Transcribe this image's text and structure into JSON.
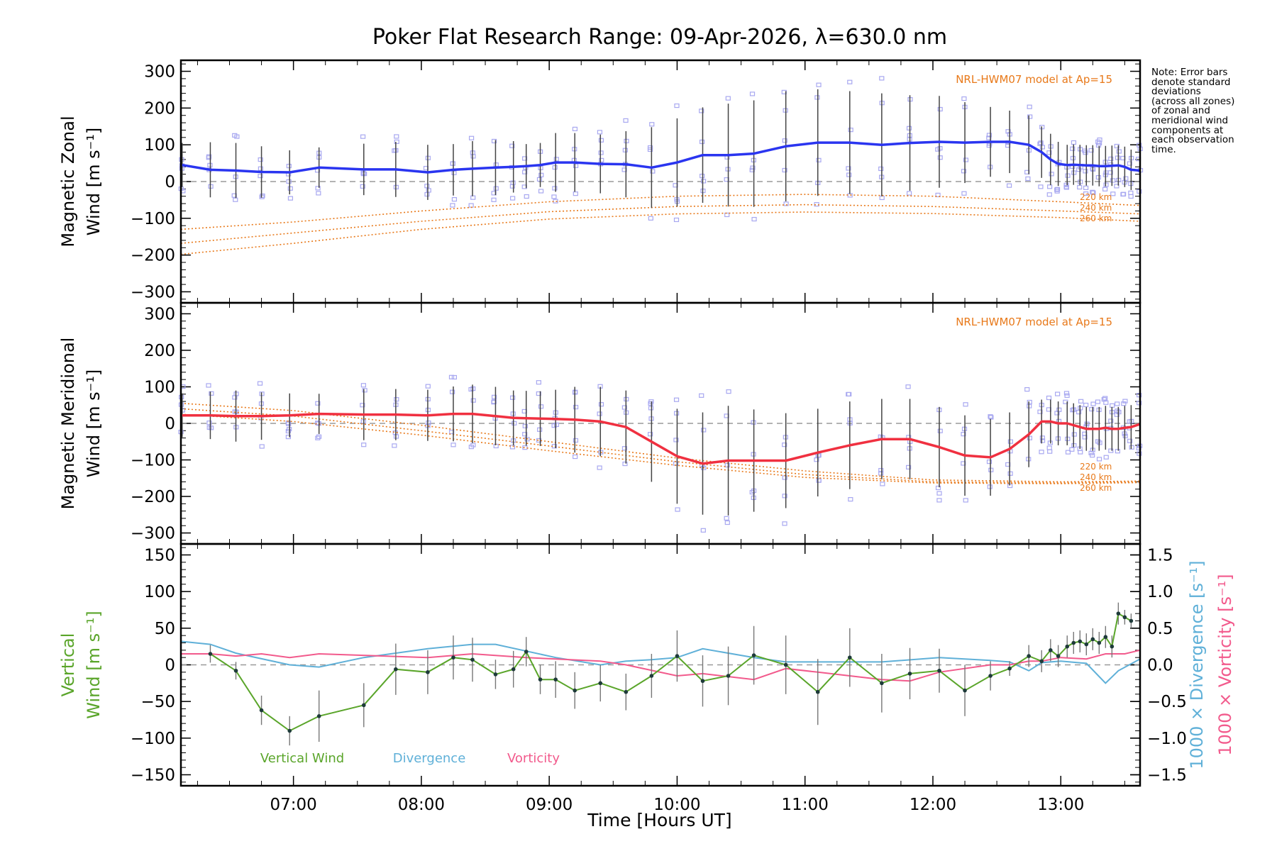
{
  "title": "Poker Flat Research Range: 09-Apr-2026, λ=630.0 nm",
  "note_lines": [
    "Note: Error bars",
    "denote standard",
    "deviations",
    "(across all zones)",
    "of zonal and",
    "meridional wind",
    "components at",
    "each observation",
    "time."
  ],
  "xlabel": "Time [Hours UT]",
  "colors": {
    "zonal_line": "#2a35f0",
    "meridional_line": "#f03040",
    "model": "#e8791a",
    "vertical": "#5aa52a",
    "divergence": "#5fb0d8",
    "vorticity": "#f25a8c",
    "zone_points": "#a8a8f0",
    "error_bar": "#444444",
    "zero_line": "#9a9a9a"
  },
  "chart_data": [
    {
      "type": "line",
      "panel": "zonal",
      "ylabel": [
        "Magnetic Zonal",
        "Wind [m s⁻¹]"
      ],
      "ylim": [
        -330,
        330
      ],
      "yticks": [
        -300,
        -200,
        -100,
        0,
        100,
        200,
        300
      ],
      "xlim_hours": [
        6.12,
        13.62
      ],
      "xticks": [
        "07:00",
        "08:00",
        "09:00",
        "10:00",
        "11:00",
        "12:00",
        "13:00"
      ],
      "model_label": "NRL-HWM07 model at Ap=15",
      "model_alt_labels": [
        "220 km",
        "240 km",
        "260 km"
      ],
      "series": [
        {
          "name": "Magnetic Zonal Wind",
          "x": [
            6.13,
            6.35,
            6.55,
            6.75,
            6.97,
            7.2,
            7.55,
            7.8,
            8.05,
            8.25,
            8.4,
            8.58,
            8.72,
            8.82,
            8.93,
            9.05,
            9.2,
            9.4,
            9.6,
            9.8,
            10.0,
            10.2,
            10.4,
            10.6,
            10.85,
            11.1,
            11.35,
            11.6,
            11.82,
            12.05,
            12.25,
            12.45,
            12.6,
            12.75,
            12.85,
            12.92,
            12.98,
            13.05,
            13.1,
            13.15,
            13.2,
            13.25,
            13.3,
            13.35,
            13.4,
            13.45,
            13.5,
            13.55,
            13.62
          ],
          "y": [
            45,
            32,
            30,
            26,
            25,
            38,
            33,
            33,
            25,
            32,
            35,
            38,
            40,
            42,
            45,
            52,
            52,
            48,
            47,
            38,
            52,
            72,
            72,
            76,
            96,
            106,
            106,
            100,
            105,
            108,
            106,
            108,
            108,
            100,
            80,
            60,
            48,
            45,
            46,
            45,
            44,
            44,
            42,
            42,
            43,
            44,
            40,
            32,
            30
          ],
          "error": [
            60,
            75,
            75,
            70,
            60,
            55,
            70,
            75,
            75,
            70,
            75,
            75,
            70,
            60,
            60,
            80,
            80,
            80,
            90,
            110,
            120,
            130,
            140,
            145,
            150,
            145,
            140,
            140,
            130,
            125,
            110,
            95,
            85,
            80,
            70,
            70,
            60,
            55,
            55,
            55,
            55,
            55,
            55,
            55,
            55,
            55,
            55,
            55,
            55
          ]
        },
        {
          "name": "HWM07 220 km",
          "x": [
            6.12,
            7.0,
            8.0,
            9.0,
            10.0,
            11.0,
            12.0,
            13.0,
            13.62
          ],
          "y": [
            -130,
            -110,
            -80,
            -55,
            -40,
            -35,
            -40,
            -55,
            -65
          ]
        },
        {
          "name": "HWM07 240 km",
          "x": [
            6.12,
            7.0,
            8.0,
            9.0,
            10.0,
            11.0,
            12.0,
            13.0,
            13.62
          ],
          "y": [
            -168,
            -140,
            -108,
            -82,
            -68,
            -63,
            -68,
            -80,
            -88
          ]
        },
        {
          "name": "HWM07 260 km",
          "x": [
            6.12,
            7.0,
            8.0,
            9.0,
            10.0,
            11.0,
            12.0,
            13.0,
            13.62
          ],
          "y": [
            -198,
            -168,
            -130,
            -102,
            -88,
            -83,
            -87,
            -98,
            -108
          ]
        }
      ]
    },
    {
      "type": "line",
      "panel": "meridional",
      "ylabel": [
        "Magnetic Meridional",
        "Wind [m s⁻¹]"
      ],
      "ylim": [
        -330,
        330
      ],
      "yticks": [
        -300,
        -200,
        -100,
        0,
        100,
        200,
        300
      ],
      "model_label": "NRL-HWM07 model at Ap=15",
      "model_alt_labels": [
        "220 km",
        "240 km",
        "260 km"
      ],
      "series": [
        {
          "name": "Magnetic Meridional Wind",
          "x": [
            6.13,
            6.35,
            6.55,
            6.75,
            6.97,
            7.2,
            7.55,
            7.8,
            8.05,
            8.25,
            8.4,
            8.58,
            8.72,
            8.82,
            8.93,
            9.05,
            9.2,
            9.4,
            9.6,
            9.8,
            10.0,
            10.2,
            10.4,
            10.6,
            10.85,
            11.1,
            11.35,
            11.6,
            11.82,
            12.05,
            12.25,
            12.45,
            12.6,
            12.75,
            12.85,
            12.92,
            12.98,
            13.05,
            13.1,
            13.15,
            13.2,
            13.25,
            13.3,
            13.35,
            13.4,
            13.45,
            13.5,
            13.55,
            13.62
          ],
          "y": [
            22,
            22,
            20,
            20,
            22,
            26,
            24,
            24,
            22,
            26,
            26,
            20,
            15,
            14,
            13,
            12,
            10,
            5,
            -10,
            -50,
            -90,
            -110,
            -102,
            -102,
            -102,
            -80,
            -60,
            -43,
            -43,
            -65,
            -88,
            -93,
            -70,
            -30,
            5,
            5,
            0,
            0,
            -5,
            -10,
            -15,
            -15,
            -15,
            -12,
            -15,
            -15,
            -12,
            -10,
            -2
          ],
          "error": [
            60,
            65,
            70,
            65,
            60,
            55,
            70,
            70,
            70,
            75,
            80,
            80,
            75,
            75,
            75,
            80,
            90,
            95,
            100,
            110,
            130,
            140,
            150,
            140,
            130,
            120,
            120,
            110,
            110,
            110,
            110,
            105,
            100,
            90,
            60,
            60,
            60,
            60,
            60,
            60,
            60,
            60,
            60,
            60,
            60,
            60,
            60,
            60,
            60
          ]
        },
        {
          "name": "HWM07 220 km",
          "x": [
            6.12,
            7.0,
            8.0,
            9.0,
            10.0,
            11.0,
            12.0,
            13.0,
            13.62
          ],
          "y": [
            55,
            35,
            -5,
            -50,
            -95,
            -130,
            -155,
            -160,
            -158
          ]
        },
        {
          "name": "HWM07 240 km",
          "x": [
            6.12,
            7.0,
            8.0,
            9.0,
            10.0,
            11.0,
            12.0,
            13.0,
            13.62
          ],
          "y": [
            40,
            20,
            -20,
            -62,
            -105,
            -140,
            -160,
            -163,
            -160
          ]
        },
        {
          "name": "HWM07 260 km",
          "x": [
            6.12,
            7.0,
            8.0,
            9.0,
            10.0,
            11.0,
            12.0,
            13.0,
            13.62
          ],
          "y": [
            25,
            5,
            -32,
            -75,
            -115,
            -148,
            -163,
            -165,
            -162
          ]
        }
      ]
    },
    {
      "type": "line",
      "panel": "vertical",
      "ylabel": [
        "Vertical",
        "Wind [m s⁻¹]"
      ],
      "ylim": [
        -165,
        165
      ],
      "yticks": [
        -150,
        -100,
        -50,
        0,
        50,
        100,
        150
      ],
      "y2lim": [
        -1.65,
        1.65
      ],
      "y2ticks": [
        -1.5,
        -1.0,
        -0.5,
        0.0,
        0.5,
        1.0,
        1.5
      ],
      "y2labels": [
        "1000 × Divergence [s⁻¹]",
        "1000 × Vorticity [s⁻¹]"
      ],
      "legend": [
        "Vertical Wind",
        "Divergence",
        "Vorticity"
      ],
      "series": [
        {
          "name": "Vertical Wind",
          "x": [
            6.35,
            6.55,
            6.75,
            6.97,
            7.2,
            7.55,
            7.8,
            8.05,
            8.25,
            8.4,
            8.58,
            8.72,
            8.82,
            8.93,
            9.05,
            9.2,
            9.4,
            9.6,
            9.8,
            10.0,
            10.2,
            10.4,
            10.6,
            10.85,
            11.1,
            11.35,
            11.6,
            11.82,
            12.05,
            12.25,
            12.45,
            12.6,
            12.75,
            12.85,
            12.92,
            12.98,
            13.05,
            13.1,
            13.15,
            13.2,
            13.25,
            13.3,
            13.35,
            13.4,
            13.45,
            13.5,
            13.55
          ],
          "y": [
            15,
            -8,
            -62,
            -90,
            -70,
            -55,
            -6,
            -10,
            10,
            7,
            -13,
            -6,
            18,
            -20,
            -20,
            -35,
            -25,
            -37,
            -15,
            12,
            -22,
            -15,
            13,
            0,
            -37,
            10,
            -25,
            -12,
            -8,
            -35,
            -15,
            -5,
            12,
            5,
            20,
            12,
            25,
            30,
            32,
            28,
            35,
            30,
            38,
            25,
            70,
            65,
            60
          ],
          "error": [
            12,
            12,
            20,
            20,
            35,
            30,
            35,
            30,
            30,
            30,
            20,
            25,
            20,
            20,
            25,
            25,
            25,
            25,
            30,
            35,
            35,
            40,
            40,
            40,
            45,
            40,
            40,
            35,
            30,
            35,
            20,
            10,
            15,
            15,
            15,
            15,
            15,
            15,
            15,
            15,
            15,
            15,
            15,
            15,
            15,
            10,
            10
          ]
        },
        {
          "name": "1000 × Divergence",
          "x": [
            6.12,
            6.35,
            6.55,
            6.97,
            7.2,
            7.55,
            8.05,
            8.4,
            8.58,
            9.05,
            9.4,
            9.6,
            9.8,
            10.0,
            10.2,
            10.6,
            10.85,
            11.1,
            11.6,
            12.05,
            12.45,
            12.6,
            12.75,
            12.85,
            13.0,
            13.2,
            13.35,
            13.45,
            13.62
          ],
          "y": [
            0.32,
            0.28,
            0.16,
            0.0,
            -0.03,
            0.1,
            0.22,
            0.28,
            0.28,
            0.1,
            0.0,
            0.05,
            0.07,
            0.1,
            0.22,
            0.1,
            0.04,
            0.04,
            0.04,
            0.1,
            0.06,
            0.04,
            -0.08,
            0.03,
            0.05,
            0.02,
            -0.25,
            -0.08,
            0.08
          ]
        },
        {
          "name": "1000 × Vorticity",
          "x": [
            6.12,
            6.35,
            6.55,
            6.75,
            6.97,
            7.2,
            7.55,
            8.05,
            8.4,
            8.82,
            9.4,
            9.6,
            10.0,
            10.2,
            10.6,
            10.85,
            11.1,
            11.6,
            11.82,
            12.05,
            12.45,
            12.6,
            12.75,
            12.85,
            13.0,
            13.2,
            13.35,
            13.5,
            13.62
          ],
          "y": [
            0.15,
            0.15,
            0.12,
            0.15,
            0.1,
            0.15,
            0.13,
            0.1,
            0.15,
            0.1,
            0.05,
            0.0,
            -0.15,
            -0.12,
            -0.2,
            -0.05,
            -0.1,
            -0.2,
            -0.22,
            -0.1,
            0.0,
            0.0,
            0.05,
            0.05,
            0.1,
            0.08,
            0.15,
            0.15,
            0.2
          ]
        }
      ]
    }
  ]
}
